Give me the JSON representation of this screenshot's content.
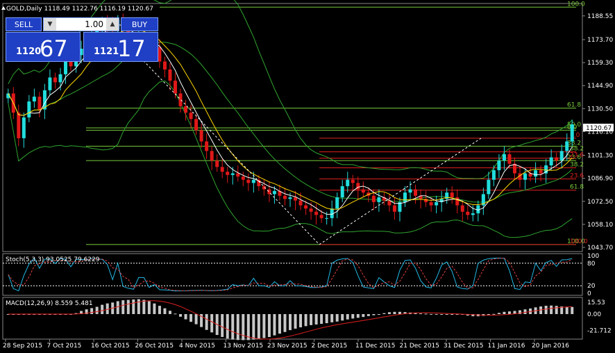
{
  "chart_header": {
    "symbol_line": "GOLD,Daily  1118.49 1122.76 1116.19 1120.67"
  },
  "trade_panel": {
    "sell_label": "SELL",
    "buy_label": "BUY",
    "volume": "1.00",
    "sell_price_prefix": "1120",
    "sell_price_big": "67",
    "buy_price_prefix": "1121",
    "buy_price_big": "17"
  },
  "price_axis": {
    "labels": [
      "1188.55",
      "1173.70",
      "1159.30",
      "1144.90",
      "1130.50",
      "1116.10",
      "1101.30",
      "1086.90",
      "1072.50",
      "1058.10",
      "1043.70"
    ],
    "current_price": "1120.67"
  },
  "fib_levels": {
    "big": [
      "100.0",
      "61.8",
      "50.0",
      "38.2",
      "23.6",
      "0.0",
      "100.0"
    ],
    "small": [
      "0.0",
      "38.2",
      "23.6",
      "38.2",
      "23.6",
      "61.8",
      "100.0"
    ]
  },
  "stoch": {
    "title": "Stoch(5,3,3) 93.0525 79.6229",
    "axis": [
      "100",
      "80",
      "20",
      "0"
    ]
  },
  "macd": {
    "title": "MACD(12,26,9) 8.559 5.481",
    "axis": [
      "15.53",
      "0.00",
      "-21.712"
    ]
  },
  "time_axis": [
    "28 Sep 2015",
    "7 Oct 2015",
    "16 Oct 2015",
    "26 Oct 2015",
    "4 Nov 2015",
    "13 Nov 2015",
    "23 Nov 2015",
    "2 Dec 2015",
    "11 Dec 2015",
    "21 Dec 2015",
    "31 Dec 2015",
    "11 Jan 2016",
    "20 Jan 2016"
  ],
  "chart_data": {
    "type": "candlestick",
    "symbol": "GOLD",
    "timeframe": "Daily",
    "ylim": [
      1043.7,
      1195
    ],
    "closes": [
      1140,
      1128,
      1112,
      1125,
      1135,
      1138,
      1130,
      1142,
      1150,
      1147,
      1152,
      1160,
      1157,
      1164,
      1168,
      1172,
      1178,
      1181,
      1185,
      1183,
      1180,
      1186,
      1179,
      1175,
      1171,
      1177,
      1174,
      1168,
      1169,
      1160,
      1155,
      1148,
      1140,
      1132,
      1128,
      1124,
      1117,
      1110,
      1104,
      1098,
      1094,
      1091,
      1089,
      1090,
      1088,
      1086,
      1084,
      1086,
      1082,
      1080,
      1077,
      1079,
      1076,
      1074,
      1075,
      1073,
      1070,
      1068,
      1066,
      1064,
      1062,
      1062,
      1068,
      1075,
      1082,
      1086,
      1084,
      1080,
      1078,
      1076,
      1072,
      1075,
      1073,
      1070,
      1066,
      1072,
      1078,
      1080,
      1076,
      1074,
      1072,
      1070,
      1072,
      1074,
      1078,
      1075,
      1070,
      1066,
      1064,
      1065,
      1070,
      1077,
      1086,
      1092,
      1098,
      1102,
      1096,
      1090,
      1086,
      1090,
      1088,
      1092,
      1090,
      1095,
      1100,
      1098,
      1104,
      1110,
      1120.67
    ],
    "fib_big_prices": [
      1194,
      1130.8,
      1118.5,
      1107,
      1098,
      1117,
      1045.5
    ],
    "fib_small_prices": [
      1112,
      1103.5,
      1099.5,
      1093.5,
      1086.5,
      1079.5,
      1045.5
    ],
    "stoch_colors": {
      "main": "#22b8e6",
      "signal": "#e04040",
      "levels": "#ffffff"
    },
    "macd_colors": {
      "histogram": "#c8c8c8",
      "signal": "#e02020"
    },
    "colors": {
      "bull": "#22dddd",
      "bear": "#e01818",
      "bands": "#2fa52f",
      "ma_fast": "#ffffff",
      "ma_slow": "#ffd700",
      "fib_big": "#7acc3a",
      "fib_small": "#e02020"
    }
  }
}
